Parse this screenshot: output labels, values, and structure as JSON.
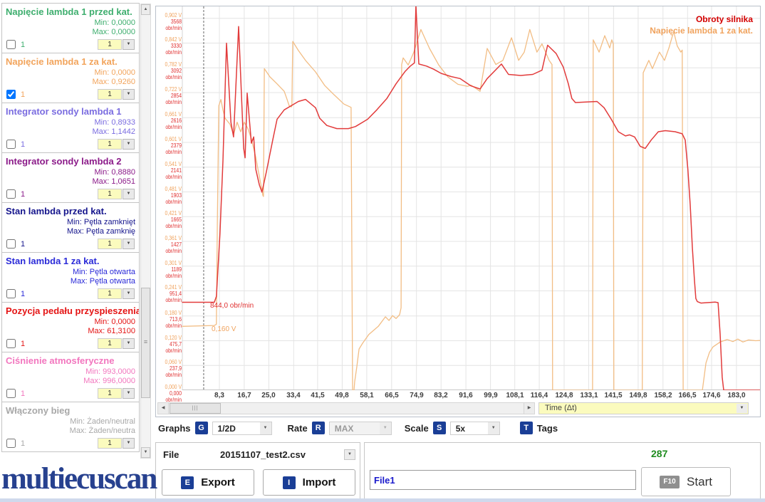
{
  "logo": "multiecuscan",
  "icons": {
    "dropdown_arrow": "▼",
    "scroll_up": "▲",
    "scroll_down": "▼",
    "scroll_left": "◀",
    "scroll_right": "▶",
    "vthumb_grip": "≡",
    "hthumb_grip": "|||"
  },
  "sidebar": {
    "channels": [
      {
        "name": "Napięcie lambda 1 przed kat.",
        "color": "#3eae6e",
        "min": "Min: 0,0000",
        "max": "Max: 0,0000",
        "checked": false,
        "index_label": "1",
        "scale": "1"
      },
      {
        "name": "Napięcie lambda 1 za kat.",
        "color": "#f2a45c",
        "min": "Min: 0,0000",
        "max": "Max: 0,9260",
        "checked": true,
        "index_label": "1",
        "scale": "1"
      },
      {
        "name": "Integrator sondy lambda 1",
        "color": "#7a6ce0",
        "min": "Min: 0,8933",
        "max": "Max: 1,1442",
        "checked": false,
        "index_label": "1",
        "scale": "1"
      },
      {
        "name": "Integrator sondy lambda 2",
        "color": "#8b1a89",
        "min": "Min: 0,8880",
        "max": "Max: 1,0651",
        "checked": false,
        "index_label": "1",
        "scale": "1"
      },
      {
        "name": "Stan lambda przed kat.",
        "color": "#14148c",
        "min": "Min: Pętla zamknięt",
        "max": "Max: Pętla zamknię",
        "checked": false,
        "index_label": "1",
        "scale": "1"
      },
      {
        "name": "Stan lambda 1 za kat.",
        "color": "#2a2ad8",
        "min": "Min: Pętla otwarta",
        "max": "Max: Pętla otwarta",
        "checked": false,
        "index_label": "1",
        "scale": "1"
      },
      {
        "name": "Pozycja pedału przyspieszenia",
        "color": "#e41414",
        "min": "Min: 0,0000",
        "max": "Max: 61,3100",
        "checked": false,
        "index_label": "1",
        "scale": "1"
      },
      {
        "name": "Ciśnienie atmosferyczne",
        "color": "#f276be",
        "min": "Min: 993,0000",
        "max": "Max: 996,0000",
        "checked": false,
        "index_label": "1",
        "scale": "1"
      },
      {
        "name": "Włączony bieg",
        "color": "#a8a8a8",
        "min": "Min: Żaden/neutral",
        "max": "Max: Żaden/neutra",
        "checked": false,
        "index_label": "1",
        "scale": "1"
      }
    ]
  },
  "chart": {
    "legend": [
      {
        "label": "Obroty silnika",
        "color": "#d40000"
      },
      {
        "label": "Napięcie lambda 1 za kat.",
        "color": "#f0a35e"
      }
    ],
    "cursor": {
      "t": 3.0,
      "rpm_label": "844,0 obr/min",
      "volt_label": "0,160 V"
    },
    "x_axis_dropdown": "Time (Δt)"
  },
  "chart_data": {
    "type": "line",
    "xlabel": "Time (Δt)",
    "grid": true,
    "x_range_s": [
      -4.3,
      191.9
    ],
    "y_range_volts": [
      0,
      0.932
    ],
    "y_range_rpm": [
      0,
      3687
    ],
    "x_ticks": [
      "8,3",
      "16,7",
      "25,0",
      "33,4",
      "41,5",
      "49,8",
      "58,1",
      "66,5",
      "74,9",
      "83,2",
      "91,6",
      "99,9",
      "108,1",
      "116,4",
      "124,8",
      "133,1",
      "141,5",
      "149,8",
      "158,2",
      "166,5",
      "174,6",
      "183,0"
    ],
    "y_ticks": [
      {
        "volt": "0,902 V",
        "rpm": "3568 obr/min"
      },
      {
        "volt": "0,842 V",
        "rpm": "3330 obr/min"
      },
      {
        "volt": "0,782 V",
        "rpm": "3092 obr/min"
      },
      {
        "volt": "0,722 V",
        "rpm": "2854 obr/min"
      },
      {
        "volt": "0,661 V",
        "rpm": "2616 obr/min"
      },
      {
        "volt": "0,601 V",
        "rpm": "2379 obr/min"
      },
      {
        "volt": "0,541 V",
        "rpm": "2141 obr/min"
      },
      {
        "volt": "0,481 V",
        "rpm": "1903 obr/min"
      },
      {
        "volt": "0,421 V",
        "rpm": "1665 obr/min"
      },
      {
        "volt": "0,361 V",
        "rpm": "1427 obr/min"
      },
      {
        "volt": "0,301 V",
        "rpm": "1189 obr/min"
      },
      {
        "volt": "0,241 V",
        "rpm": "951,4 obr/min"
      },
      {
        "volt": "0,180 V",
        "rpm": "713,6 obr/min"
      },
      {
        "volt": "0,120 V",
        "rpm": "475,7 obr/min"
      },
      {
        "volt": "0,060 V",
        "rpm": "237,9 obr/min"
      },
      {
        "volt": "0,000 V",
        "rpm": "0,000 obr/min"
      }
    ],
    "series": [
      {
        "name": "Obroty silnika",
        "unit": "obr/min",
        "color": "#e23b3b",
        "stroke_width": 1.5,
        "points": [
          [
            -4.2,
            844
          ],
          [
            6.6,
            844
          ],
          [
            7.3,
            900
          ],
          [
            8.5,
            1500
          ],
          [
            9.5,
            2200
          ],
          [
            10.7,
            3330
          ],
          [
            12.2,
            2570
          ],
          [
            13.1,
            2430
          ],
          [
            14.8,
            3490
          ],
          [
            16.5,
            2320
          ],
          [
            17,
            2230
          ],
          [
            17.7,
            2850
          ],
          [
            19.1,
            2370
          ],
          [
            19.9,
            2430
          ],
          [
            20.6,
            2120
          ],
          [
            21.8,
            1970
          ],
          [
            22.7,
            1900
          ],
          [
            24.2,
            2100
          ],
          [
            26.4,
            2410
          ],
          [
            27.8,
            2600
          ],
          [
            30.2,
            2690
          ],
          [
            32.6,
            2730
          ],
          [
            35,
            2770
          ],
          [
            37.4,
            2790
          ],
          [
            40.8,
            2710
          ],
          [
            42.2,
            2610
          ],
          [
            44.6,
            2540
          ],
          [
            48,
            2510
          ],
          [
            51.9,
            2510
          ],
          [
            54.3,
            2530
          ],
          [
            58.4,
            2600
          ],
          [
            61.5,
            2690
          ],
          [
            64.9,
            2800
          ],
          [
            68,
            2940
          ],
          [
            71.1,
            3060
          ],
          [
            72.8,
            3110
          ],
          [
            74.2,
            3140
          ],
          [
            74.7,
            3690
          ],
          [
            75.7,
            3130
          ],
          [
            78.3,
            3110
          ],
          [
            80.7,
            3080
          ],
          [
            83.2,
            3040
          ],
          [
            86.5,
            3010
          ],
          [
            89.6,
            2990
          ],
          [
            93.3,
            2920
          ],
          [
            96.4,
            2890
          ],
          [
            98.8,
            2990
          ],
          [
            103.6,
            3130
          ],
          [
            106,
            3030
          ],
          [
            110.1,
            3020
          ],
          [
            114.2,
            3030
          ],
          [
            117.3,
            3070
          ],
          [
            119.2,
            3310
          ],
          [
            122.1,
            3230
          ],
          [
            124.5,
            3100
          ],
          [
            126.2,
            2940
          ],
          [
            127.4,
            2800
          ],
          [
            128.6,
            2760
          ],
          [
            135.9,
            2770
          ],
          [
            138.3,
            2710
          ],
          [
            140.7,
            2600
          ],
          [
            143.1,
            2480
          ],
          [
            145.5,
            2440
          ],
          [
            146.9,
            2450
          ],
          [
            148.6,
            2430
          ],
          [
            150.5,
            2340
          ],
          [
            152.2,
            2320
          ],
          [
            154.2,
            2400
          ],
          [
            156.6,
            2480
          ],
          [
            159,
            2490
          ],
          [
            162.3,
            2480
          ],
          [
            164.7,
            2460
          ],
          [
            165.7,
            2400
          ],
          [
            166.6,
            2120
          ],
          [
            167.4,
            1780
          ],
          [
            168.1,
            1370
          ],
          [
            168.8,
            1060
          ],
          [
            169.3,
            880
          ],
          [
            169.8,
            850
          ],
          [
            171,
            836
          ],
          [
            175.8,
            845
          ],
          [
            176.8,
            840
          ],
          [
            177.5,
            540
          ],
          [
            178.2,
            125
          ],
          [
            178.7,
            0
          ],
          [
            191.9,
            0
          ]
        ]
      },
      {
        "name": "Napięcie lambda 1 za kat.",
        "unit": "V",
        "color": "#f2bd84",
        "stroke_width": 1.3,
        "points": [
          [
            -4.2,
            0.155
          ],
          [
            6.6,
            0.157
          ],
          [
            7.3,
            0.16
          ],
          [
            7.6,
            0.4
          ],
          [
            8.1,
            0.69
          ],
          [
            8.8,
            0.705
          ],
          [
            9.5,
            0.68
          ],
          [
            10.2,
            0.66
          ],
          [
            11.9,
            0.645
          ],
          [
            13.1,
            0.62
          ],
          [
            14.3,
            0.65
          ],
          [
            15.5,
            0.627
          ],
          [
            16.7,
            0.65
          ],
          [
            17.9,
            0.635
          ],
          [
            19.1,
            0.61
          ],
          [
            20.6,
            0.565
          ],
          [
            21.5,
            0.53
          ],
          [
            22.3,
            0.5
          ],
          [
            23,
            0.472
          ],
          [
            23.2,
            0.47
          ],
          [
            23.5,
            0.78
          ],
          [
            25.4,
            0.76
          ],
          [
            27.8,
            0.743
          ],
          [
            30.2,
            0.725
          ],
          [
            31.2,
            0.705
          ],
          [
            31.9,
            0.69
          ],
          [
            32.6,
            0.687
          ],
          [
            32.8,
            0.69
          ],
          [
            33.1,
            0.846
          ],
          [
            35,
            0.824
          ],
          [
            37.4,
            0.8
          ],
          [
            40.8,
            0.772
          ],
          [
            43.9,
            0.739
          ],
          [
            47,
            0.717
          ],
          [
            50.4,
            0.694
          ],
          [
            52.8,
            0.686
          ],
          [
            53.1,
            0.3
          ],
          [
            53.3,
            0
          ],
          [
            53.8,
            0
          ],
          [
            54,
            0.02
          ],
          [
            54.7,
            0.055
          ],
          [
            55.5,
            0.1
          ],
          [
            56.7,
            0.114
          ],
          [
            58.8,
            0.135
          ],
          [
            62,
            0.155
          ],
          [
            64.4,
            0.178
          ],
          [
            65.6,
            0.169
          ],
          [
            66.8,
            0.181
          ],
          [
            68,
            0.174
          ],
          [
            69.2,
            0.183
          ],
          [
            69.7,
            0.2
          ],
          [
            69.9,
            0.79
          ],
          [
            70.4,
            0.806
          ],
          [
            72.1,
            0.789
          ],
          [
            74,
            0.82
          ],
          [
            76.4,
            0.875
          ],
          [
            79.3,
            0.829
          ],
          [
            82.4,
            0.789
          ],
          [
            85.5,
            0.76
          ],
          [
            88.9,
            0.742
          ],
          [
            92.1,
            0.737
          ],
          [
            93.3,
            0.74
          ],
          [
            96.4,
            0.725
          ],
          [
            98.8,
            0.829
          ],
          [
            101.7,
            0.79
          ],
          [
            104.1,
            0.8
          ],
          [
            107,
            0.855
          ],
          [
            109.4,
            0.8
          ],
          [
            111.3,
            0.82
          ],
          [
            113.2,
            0.875
          ],
          [
            115.6,
            0.82
          ],
          [
            117.3,
            0.84
          ],
          [
            119.7,
            0.8
          ],
          [
            120.7,
            0.79
          ],
          [
            120.9,
            0
          ],
          [
            134.4,
            0
          ],
          [
            134.6,
            0.85
          ],
          [
            136.6,
            0.82
          ],
          [
            138.5,
            0.86
          ],
          [
            140.2,
            0.83
          ],
          [
            140.9,
            0.85
          ],
          [
            141.4,
            0.84
          ],
          [
            141.6,
            0
          ],
          [
            151.2,
            0
          ],
          [
            151.5,
            0.77
          ],
          [
            153.4,
            0.8
          ],
          [
            154.6,
            0.78
          ],
          [
            157,
            0.82
          ],
          [
            158.7,
            0.8
          ],
          [
            160.2,
            0.83
          ],
          [
            161.8,
            0.87
          ],
          [
            163,
            0.835
          ],
          [
            164.2,
            0.82
          ],
          [
            164.7,
            0.825
          ],
          [
            165,
            0
          ],
          [
            171.5,
            0
          ],
          [
            172.7,
            0.066
          ],
          [
            173.9,
            0.092
          ],
          [
            175.1,
            0.105
          ],
          [
            177.5,
            0.117
          ],
          [
            179.9,
            0.123
          ],
          [
            181.8,
            0.118
          ],
          [
            183.5,
            0.124
          ],
          [
            185.2,
            0.117
          ],
          [
            187.1,
            0.122
          ],
          [
            189.5,
            0.12
          ],
          [
            191.9,
            0.121
          ]
        ]
      }
    ],
    "rpm_per_volt_ratio": 3955.65
  },
  "toolbar": {
    "graphs_label": "Graphs",
    "g_key": "G",
    "graphs_value": "1/2D",
    "rate_label": "Rate",
    "r_key": "R",
    "rate_value": "MAX",
    "scale_label": "Scale",
    "s_key": "S",
    "scale_value": "5x",
    "t_key": "T",
    "tags_label": "Tags"
  },
  "file_panel": {
    "file_label": "File",
    "file_value": "20151107_test2.csv",
    "e_key": "E",
    "export_label": "Export",
    "i_key": "I",
    "import_label": "Import"
  },
  "run_panel": {
    "counter": "287",
    "filename": "File1",
    "f10_key": "F10",
    "start_label": "Start"
  }
}
